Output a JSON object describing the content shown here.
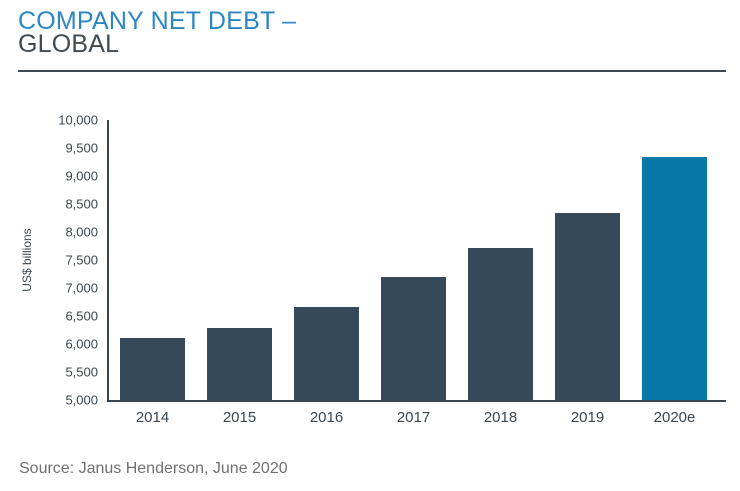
{
  "header": {
    "title_line1": "COMPANY NET DEBT –",
    "title_line2": "GLOBAL"
  },
  "chart_data": {
    "type": "bar",
    "title": "COMPANY NET DEBT – GLOBAL",
    "categories": [
      "2014",
      "2015",
      "2016",
      "2017",
      "2018",
      "2019",
      "2020e"
    ],
    "values": [
      6100,
      6290,
      6660,
      7200,
      7710,
      8340,
      9340
    ],
    "highlight_index": 6,
    "xlabel": "",
    "ylabel": "US$ billions",
    "ylim": [
      5000,
      10000
    ],
    "ytick_step": 500,
    "ytick_labels": [
      "10,000",
      "9,500",
      "9,000",
      "8,500",
      "8,000",
      "7,500",
      "7,000",
      "6,500",
      "6,000",
      "5,500",
      "5,000"
    ],
    "grid": false,
    "legend": "none",
    "bar_color": "#35495A",
    "highlight_color": "#0779A7"
  },
  "footer": {
    "source": "Source: Janus Henderson, June 2020"
  },
  "colors": {
    "title_blue": "#2B87C2",
    "title_dark": "#3F4A53",
    "axis": "#3A4750",
    "tick_text": "#39454F",
    "source_text": "#6F7072",
    "bar_dark": "#35495A",
    "bar_highlight": "#0779A7"
  }
}
